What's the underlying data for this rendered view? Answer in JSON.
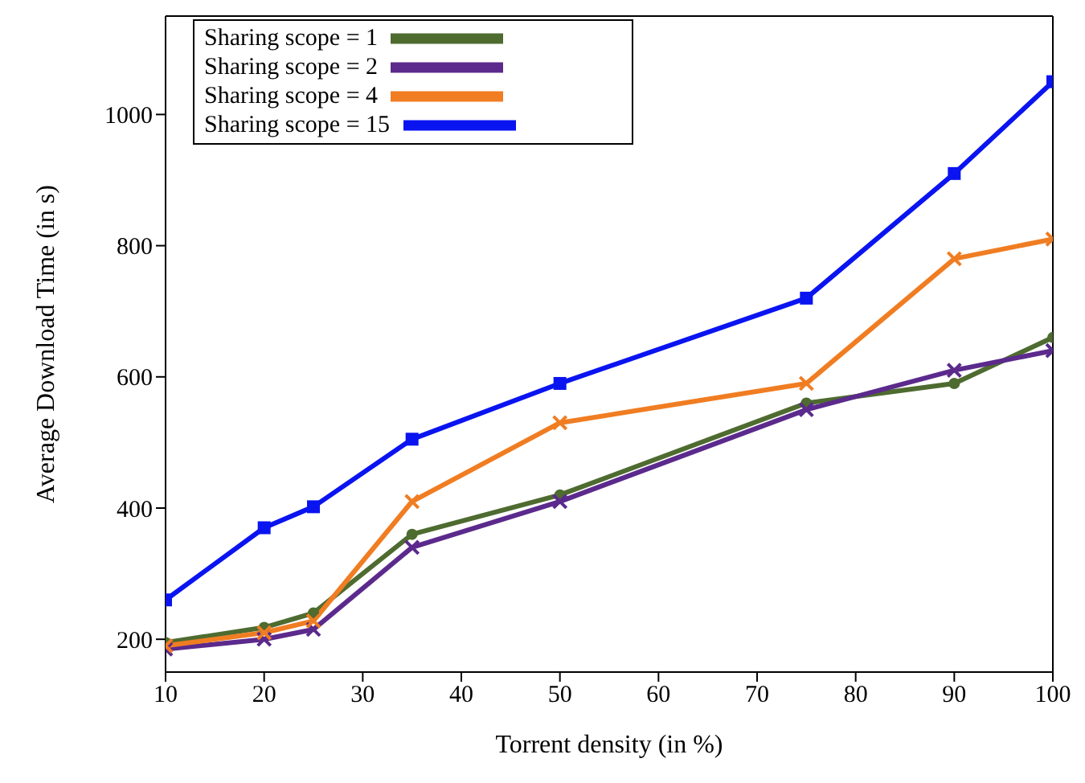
{
  "chart_data": {
    "type": "line",
    "xlabel": "Torrent density (in %)",
    "ylabel": "Average Download Time (in s)",
    "x": [
      10,
      20,
      25,
      35,
      50,
      75,
      90,
      100
    ],
    "series": [
      {
        "name": "Sharing scope = 1",
        "color": "#4e6b30",
        "marker": "circle",
        "values": [
          195,
          218,
          240,
          360,
          420,
          560,
          590,
          660
        ]
      },
      {
        "name": "Sharing scope = 2",
        "color": "#5b2a8c",
        "marker": "cross",
        "values": [
          185,
          200,
          215,
          340,
          410,
          550,
          610,
          640
        ]
      },
      {
        "name": "Sharing scope = 4",
        "color": "#f07d22",
        "marker": "cross",
        "values": [
          190,
          210,
          228,
          410,
          530,
          590,
          780,
          810
        ]
      },
      {
        "name": "Sharing scope = 15",
        "color": "#0a14f0",
        "marker": "square",
        "values": [
          260,
          370,
          402,
          505,
          590,
          720,
          910,
          1050
        ]
      }
    ],
    "xlim": [
      10,
      100
    ],
    "xticks": [
      10,
      20,
      30,
      40,
      50,
      60,
      70,
      80,
      90,
      100
    ],
    "ylim": [
      150,
      1150
    ],
    "yticks": [
      200,
      400,
      600,
      800,
      1000
    ],
    "grid": false,
    "legend": "top left",
    "line_style": "solid"
  }
}
